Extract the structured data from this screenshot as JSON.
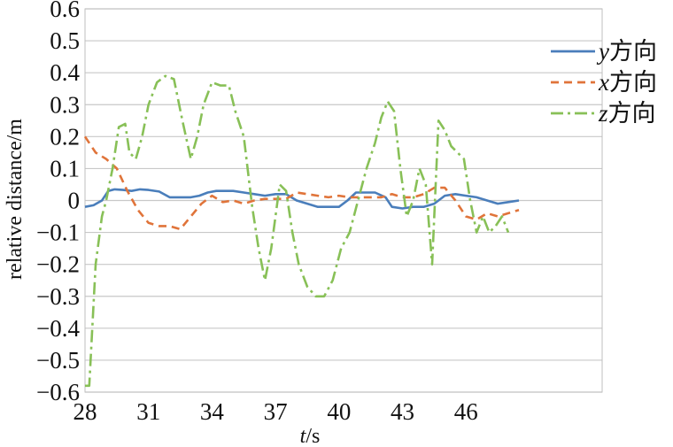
{
  "chart_data": {
    "type": "line",
    "xlabel": {
      "var": "t",
      "unit": "/s"
    },
    "ylabel": "relative distance/m",
    "xlim": [
      28,
      48.5
    ],
    "ylim": [
      -0.6,
      0.6
    ],
    "x_ticks": [
      28,
      31,
      34,
      37,
      40,
      43,
      46
    ],
    "y_ticks": [
      0.6,
      0.5,
      0.4,
      0.3,
      0.2,
      0.1,
      0,
      -0.1,
      -0.2,
      -0.3,
      -0.4,
      -0.5,
      -0.6
    ],
    "y_tick_labels": [
      "0.6",
      "0.5",
      "0.4",
      "0.3",
      "0.2",
      "0.1",
      "0",
      "−0.1",
      "−0.2",
      "−0.3",
      "−0.4",
      "−0.5",
      "−0.6"
    ],
    "grid": true,
    "legend_position": "right",
    "series": [
      {
        "name": "y方向",
        "name_var": "y",
        "name_suffix": "方向",
        "color": "#4a7ebb",
        "style": "solid",
        "points": [
          [
            28,
            -0.02
          ],
          [
            28.4,
            -0.015
          ],
          [
            28.8,
            0.0
          ],
          [
            29.1,
            0.03
          ],
          [
            29.4,
            0.035
          ],
          [
            29.8,
            0.033
          ],
          [
            30.2,
            0.03
          ],
          [
            30.6,
            0.035
          ],
          [
            31.0,
            0.033
          ],
          [
            31.5,
            0.028
          ],
          [
            32.0,
            0.01
          ],
          [
            32.5,
            0.01
          ],
          [
            33.0,
            0.01
          ],
          [
            33.4,
            0.015
          ],
          [
            33.8,
            0.025
          ],
          [
            34.2,
            0.03
          ],
          [
            34.6,
            0.03
          ],
          [
            35.0,
            0.03
          ],
          [
            35.5,
            0.025
          ],
          [
            36.0,
            0.02
          ],
          [
            36.5,
            0.015
          ],
          [
            37.0,
            0.02
          ],
          [
            37.5,
            0.02
          ],
          [
            38.0,
            0.0
          ],
          [
            38.5,
            -0.01
          ],
          [
            39.0,
            -0.02
          ],
          [
            39.5,
            -0.02
          ],
          [
            40.0,
            -0.02
          ],
          [
            40.4,
            0.0
          ],
          [
            40.8,
            0.025
          ],
          [
            41.2,
            0.025
          ],
          [
            41.7,
            0.025
          ],
          [
            42.2,
            0.01
          ],
          [
            42.5,
            -0.02
          ],
          [
            43.0,
            -0.025
          ],
          [
            43.5,
            -0.02
          ],
          [
            44.0,
            -0.02
          ],
          [
            44.5,
            -0.01
          ],
          [
            45.0,
            0.015
          ],
          [
            45.5,
            0.02
          ],
          [
            46.0,
            0.015
          ],
          [
            46.5,
            0.01
          ],
          [
            47.0,
            0.0
          ],
          [
            47.5,
            -0.01
          ],
          [
            48.0,
            -0.005
          ],
          [
            48.5,
            0.0
          ]
        ]
      },
      {
        "name": "x方向",
        "name_var": "x",
        "name_suffix": "方向",
        "color": "#e0743a",
        "style": "dashed",
        "points": [
          [
            28,
            0.2
          ],
          [
            28.5,
            0.15
          ],
          [
            29.0,
            0.13
          ],
          [
            29.5,
            0.1
          ],
          [
            30.0,
            0.03
          ],
          [
            30.5,
            -0.03
          ],
          [
            31.0,
            -0.07
          ],
          [
            31.5,
            -0.08
          ],
          [
            32.0,
            -0.08
          ],
          [
            32.5,
            -0.09
          ],
          [
            33.0,
            -0.05
          ],
          [
            33.5,
            -0.01
          ],
          [
            34.0,
            0.015
          ],
          [
            34.5,
            -0.005
          ],
          [
            35.0,
            0.0
          ],
          [
            35.5,
            -0.01
          ],
          [
            36.0,
            0.0
          ],
          [
            36.5,
            0.005
          ],
          [
            37.0,
            0.005
          ],
          [
            37.5,
            0.005
          ],
          [
            38.0,
            0.025
          ],
          [
            38.5,
            0.02
          ],
          [
            39.0,
            0.015
          ],
          [
            39.5,
            0.01
          ],
          [
            40.0,
            0.015
          ],
          [
            40.5,
            0.01
          ],
          [
            41.0,
            0.01
          ],
          [
            41.5,
            0.01
          ],
          [
            42.0,
            0.01
          ],
          [
            42.5,
            0.02
          ],
          [
            43.0,
            0.01
          ],
          [
            43.5,
            0.01
          ],
          [
            44.0,
            0.02
          ],
          [
            44.5,
            0.04
          ],
          [
            45.0,
            0.04
          ],
          [
            45.5,
            0.0
          ],
          [
            46.0,
            -0.05
          ],
          [
            46.5,
            -0.06
          ],
          [
            47.0,
            -0.04
          ],
          [
            47.5,
            -0.05
          ],
          [
            48.0,
            -0.04
          ],
          [
            48.5,
            -0.03
          ]
        ]
      },
      {
        "name": "z方向",
        "name_var": "z",
        "name_suffix": "方向",
        "color": "#88c057",
        "style": "dashdot",
        "points": [
          [
            28,
            -0.58
          ],
          [
            28.2,
            -0.58
          ],
          [
            28.5,
            -0.2
          ],
          [
            28.8,
            -0.05
          ],
          [
            29.0,
            0.0
          ],
          [
            29.3,
            0.1
          ],
          [
            29.6,
            0.23
          ],
          [
            29.9,
            0.24
          ],
          [
            30.1,
            0.15
          ],
          [
            30.4,
            0.13
          ],
          [
            30.7,
            0.2
          ],
          [
            31.0,
            0.3
          ],
          [
            31.4,
            0.37
          ],
          [
            31.8,
            0.39
          ],
          [
            32.2,
            0.38
          ],
          [
            32.6,
            0.25
          ],
          [
            33.0,
            0.13
          ],
          [
            33.3,
            0.2
          ],
          [
            33.6,
            0.3
          ],
          [
            34.0,
            0.37
          ],
          [
            34.4,
            0.36
          ],
          [
            34.8,
            0.36
          ],
          [
            35.1,
            0.28
          ],
          [
            35.5,
            0.2
          ],
          [
            35.9,
            -0.02
          ],
          [
            36.2,
            -0.15
          ],
          [
            36.5,
            -0.25
          ],
          [
            36.8,
            -0.15
          ],
          [
            37.2,
            0.05
          ],
          [
            37.5,
            0.03
          ],
          [
            37.8,
            -0.1
          ],
          [
            38.1,
            -0.2
          ],
          [
            38.5,
            -0.27
          ],
          [
            38.9,
            -0.3
          ],
          [
            39.3,
            -0.3
          ],
          [
            39.7,
            -0.25
          ],
          [
            40.1,
            -0.15
          ],
          [
            40.5,
            -0.1
          ],
          [
            40.9,
            0.0
          ],
          [
            41.3,
            0.1
          ],
          [
            41.7,
            0.18
          ],
          [
            42.0,
            0.26
          ],
          [
            42.3,
            0.31
          ],
          [
            42.6,
            0.28
          ],
          [
            42.9,
            0.1
          ],
          [
            43.2,
            -0.05
          ],
          [
            43.5,
            0.0
          ],
          [
            43.8,
            0.1
          ],
          [
            44.1,
            0.05
          ],
          [
            44.4,
            -0.2
          ],
          [
            44.7,
            0.25
          ],
          [
            45.0,
            0.22
          ],
          [
            45.3,
            0.17
          ],
          [
            45.6,
            0.15
          ],
          [
            45.9,
            0.13
          ],
          [
            46.2,
            0.0
          ],
          [
            46.5,
            -0.1
          ],
          [
            46.8,
            -0.05
          ],
          [
            47.1,
            -0.1
          ],
          [
            47.4,
            -0.08
          ],
          [
            47.7,
            -0.05
          ],
          [
            48.0,
            -0.1
          ]
        ]
      }
    ]
  }
}
